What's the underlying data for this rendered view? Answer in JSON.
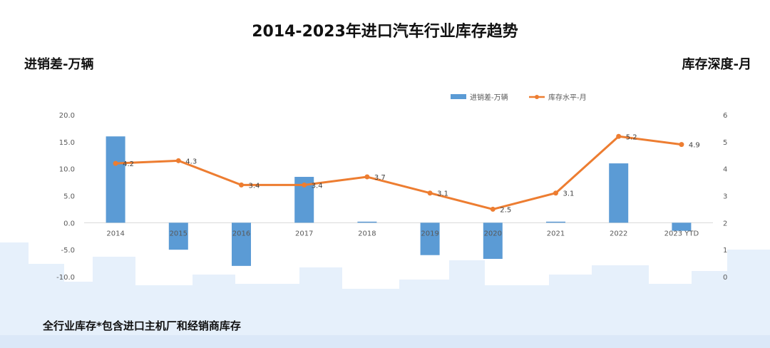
{
  "title": "2014-2023年进口汽车行业库存趋势",
  "left_axis_title": "进销差-万辆",
  "right_axis_title": "库存深度-月",
  "footnote": "全行业库存*包含进口主机厂和经销商库存",
  "colors": {
    "bar": "#5b9bd5",
    "line": "#ed7d31",
    "text": "#595959",
    "axis": "#d9d9d9",
    "skyline": "#e6f0fb"
  },
  "chart_data": {
    "type": "bar+line",
    "categories": [
      "2014",
      "2015",
      "2016",
      "2017",
      "2018",
      "2019",
      "2020",
      "2021",
      "2022",
      "2023 YTD"
    ],
    "series": [
      {
        "name": "进销差-万辆",
        "type": "bar",
        "axis": "left",
        "values": [
          16.0,
          -5.0,
          -8.0,
          8.5,
          0.2,
          -6.0,
          -6.7,
          0.2,
          11.0,
          -1.5
        ]
      },
      {
        "name": "库存水平-月",
        "type": "line",
        "axis": "right",
        "values": [
          4.2,
          4.3,
          3.4,
          3.4,
          3.7,
          3.1,
          2.5,
          3.1,
          5.2,
          4.9
        ],
        "labels": [
          "4.2",
          "4.3",
          "3.4",
          "3.4",
          "3.7",
          "3.1",
          "2.5",
          "3.1",
          "5.2",
          "4.9"
        ]
      }
    ],
    "left_axis": {
      "min": -10,
      "max": 20,
      "step": 5,
      "ticks": [
        "20.0",
        "15.0",
        "10.0",
        "5.0",
        "0.0",
        "-5.0",
        "-10.0"
      ]
    },
    "right_axis": {
      "min": 0,
      "max": 6,
      "step": 1,
      "ticks": [
        "6",
        "5",
        "4",
        "3",
        "2",
        "1",
        "0"
      ]
    },
    "legend_position": "top-right",
    "grid": false
  }
}
